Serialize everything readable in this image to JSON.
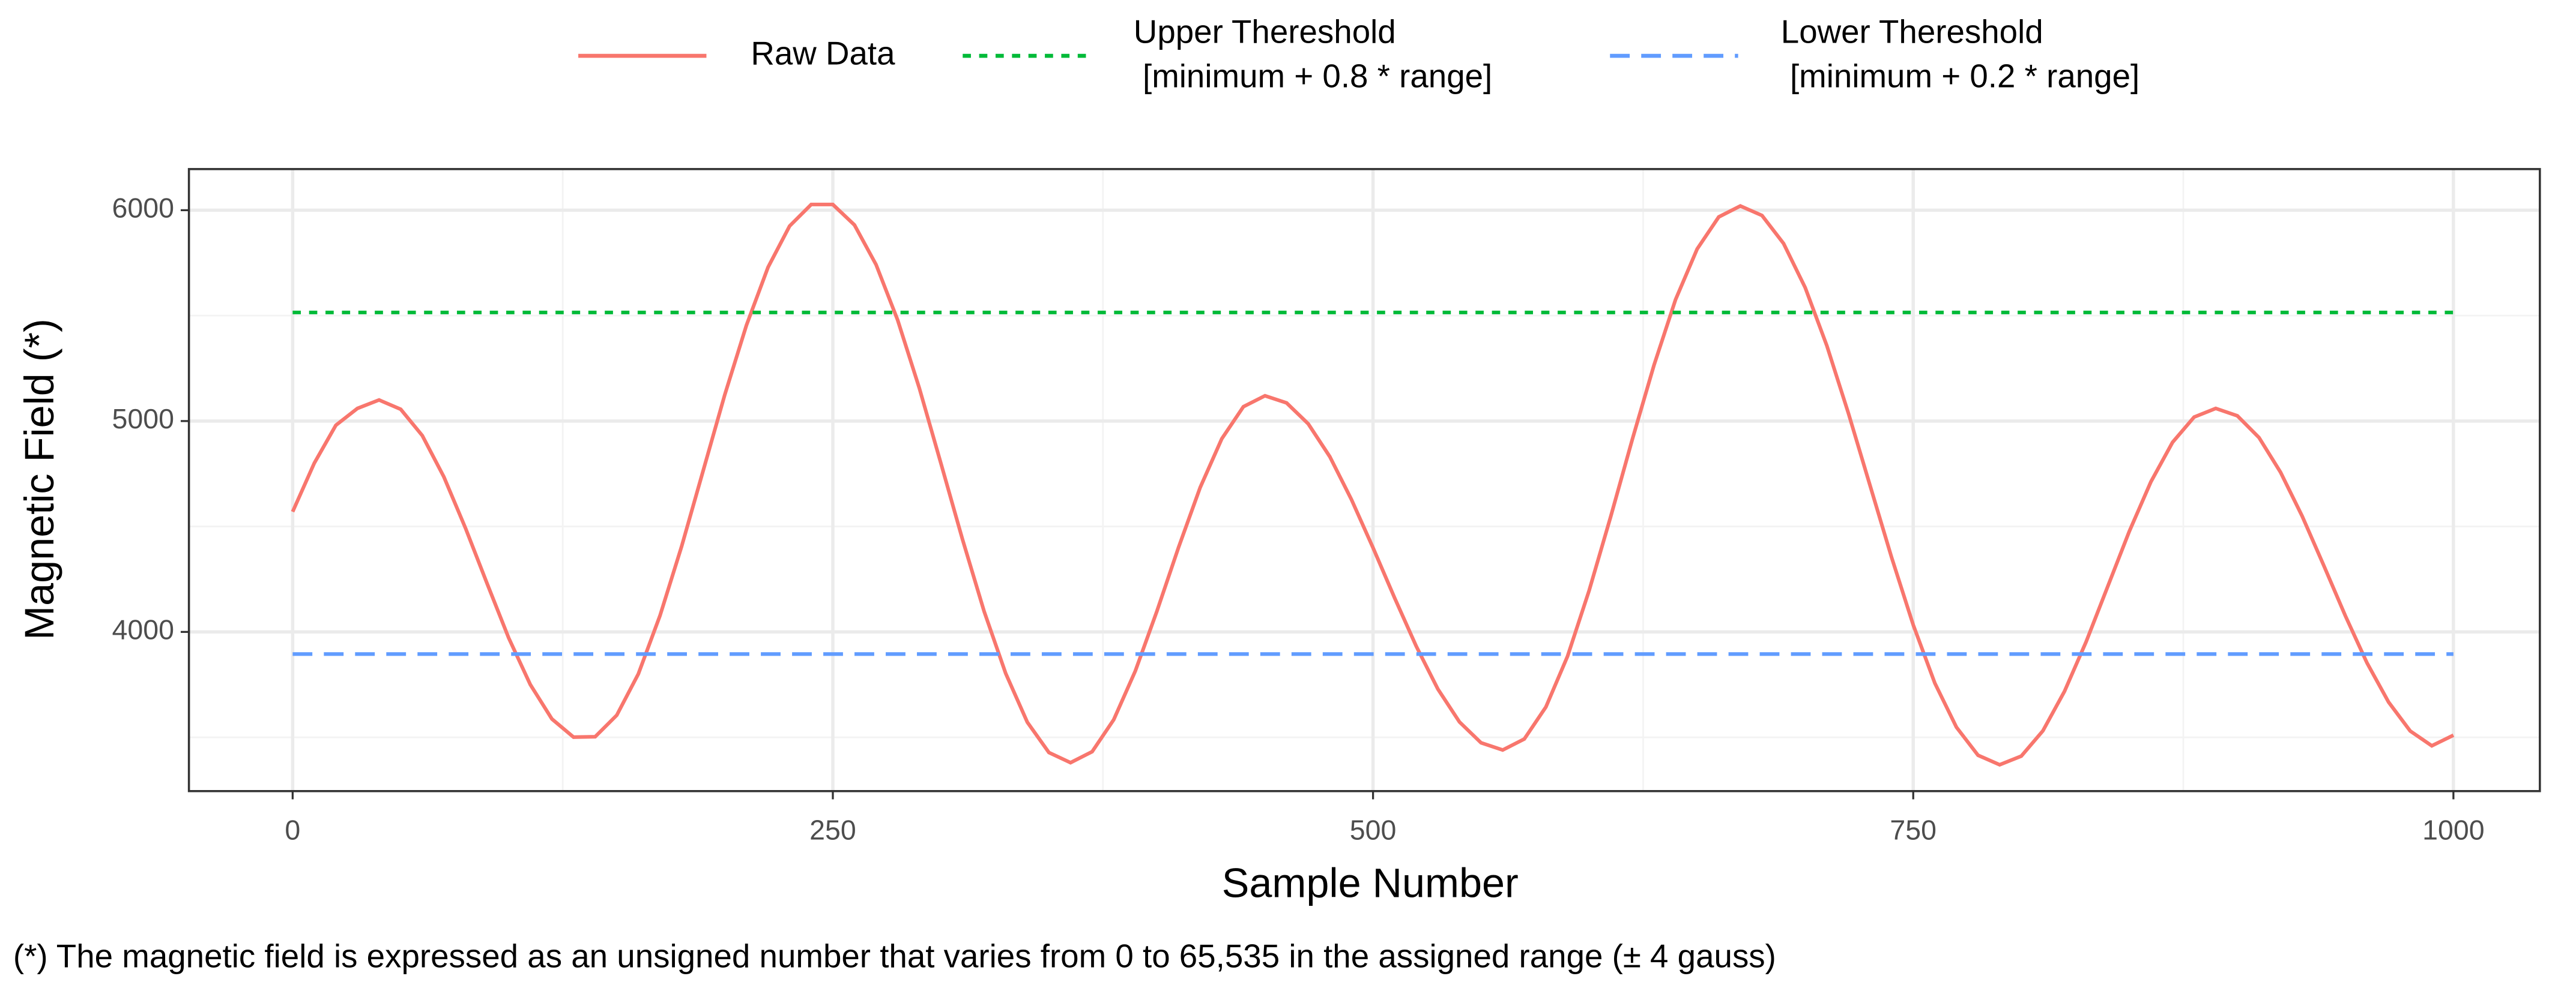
{
  "chart_data": {
    "type": "line",
    "x_label": "Sample Number",
    "y_label": "Magnetic Field (*)",
    "footnote": "(*) The magnetic field is expressed as an unsigned number that varies from 0 to 65,535 in the assigned range (± 4 gauss)",
    "xlim": [
      -48,
      1040
    ],
    "ylim": [
      3245,
      6195
    ],
    "xticks": [
      0,
      250,
      500,
      750,
      1000
    ],
    "yticks": [
      4000,
      5000,
      6000
    ],
    "x_minor_ticks": [
      125,
      375,
      625,
      875
    ],
    "y_minor_ticks": [
      3500,
      4500,
      5500
    ],
    "grid": true,
    "legend": "top",
    "series": [
      {
        "name": "Raw Data",
        "color": "#F8766D",
        "dash": "solid",
        "x": [
          0,
          10,
          20,
          30,
          40,
          50,
          60,
          70,
          80,
          90,
          100,
          110,
          120,
          130,
          140,
          150,
          160,
          170,
          180,
          190,
          200,
          210,
          220,
          230,
          240,
          250,
          260,
          270,
          280,
          290,
          300,
          310,
          320,
          330,
          340,
          350,
          360,
          370,
          380,
          390,
          400,
          410,
          420,
          430,
          440,
          450,
          460,
          470,
          480,
          490,
          500,
          510,
          520,
          530,
          540,
          550,
          560,
          570,
          580,
          590,
          600,
          610,
          620,
          630,
          640,
          650,
          660,
          670,
          680,
          690,
          700,
          710,
          720,
          730,
          740,
          750,
          760,
          770,
          780,
          790,
          800,
          810,
          820,
          830,
          840,
          850,
          860,
          870,
          880,
          890,
          900,
          910,
          920,
          930,
          940,
          950,
          960,
          970,
          980,
          990,
          1000
        ],
        "values": [
          4570,
          4800,
          4980,
          5060,
          5100,
          5056,
          4931,
          4735,
          4492,
          4229,
          3971,
          3750,
          3587,
          3501,
          3503,
          3605,
          3801,
          4077,
          4405,
          4765,
          5125,
          5454,
          5729,
          5925,
          6027,
          6027,
          5930,
          5742,
          5479,
          5157,
          4800,
          4439,
          4098,
          3803,
          3572,
          3428,
          3380,
          3432,
          3584,
          3815,
          4099,
          4401,
          4685,
          4916,
          5068,
          5120,
          5086,
          4987,
          4831,
          4628,
          4399,
          4161,
          3932,
          3729,
          3573,
          3474,
          3440,
          3492,
          3644,
          3884,
          4196,
          4547,
          4913,
          5264,
          5576,
          5816,
          5968,
          6020,
          5975,
          5842,
          5633,
          5358,
          5037,
          4695,
          4353,
          4033,
          3757,
          3548,
          3415,
          3370,
          3411,
          3531,
          3718,
          3953,
          4215,
          4477,
          4712,
          4899,
          5019,
          5060,
          5025,
          4922,
          4757,
          4549,
          4315,
          4076,
          3853,
          3667,
          3530,
          3460,
          3510
        ]
      },
      {
        "name": "Upper Thereshold\n [minimum + 0.8 * range]",
        "color": "#00BA38",
        "dash": "dotted",
        "x": [
          0,
          1000
        ],
        "values": [
          5515,
          5515
        ]
      },
      {
        "name": "Lower Thereshold\n [minimum + 0.2 * range]",
        "color": "#619CFF",
        "dash": "dashed",
        "x": [
          0,
          1000
        ],
        "values": [
          3895,
          3895
        ]
      }
    ]
  }
}
